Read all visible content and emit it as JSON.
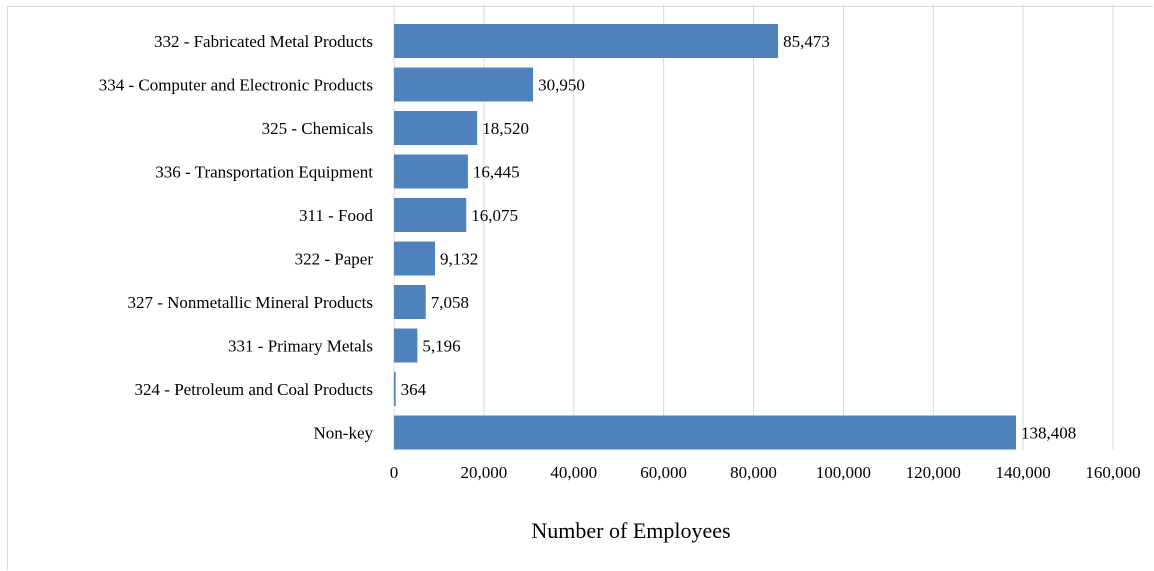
{
  "chart_data": {
    "type": "bar",
    "orientation": "horizontal",
    "title": "",
    "xlabel": "Number of Employees",
    "ylabel": "",
    "xlim": [
      0,
      160000
    ],
    "x_ticks": [
      0,
      20000,
      40000,
      60000,
      80000,
      100000,
      120000,
      140000,
      160000
    ],
    "x_tick_labels": [
      "0",
      "20,000",
      "40,000",
      "60,000",
      "80,000",
      "100,000",
      "120,000",
      "140,000",
      "160,000"
    ],
    "grid": true,
    "legend": "none",
    "bar_color": "#4f81bd",
    "categories": [
      "332 - Fabricated Metal Products",
      "334 - Computer and Electronic Products",
      "325 - Chemicals",
      "336 - Transportation Equipment",
      "311 - Food",
      "322 - Paper",
      "327 - Nonmetallic Mineral Products",
      "331 - Primary Metals",
      "324 - Petroleum and Coal Products",
      "Non-key"
    ],
    "values": [
      85473,
      30950,
      18520,
      16445,
      16075,
      9132,
      7058,
      5196,
      364,
      138408
    ],
    "data_labels": [
      "85,473",
      "30,950",
      "18,520",
      "16,445",
      "16,075",
      "9,132",
      "7,058",
      "5,196",
      "364",
      "138,408"
    ]
  }
}
